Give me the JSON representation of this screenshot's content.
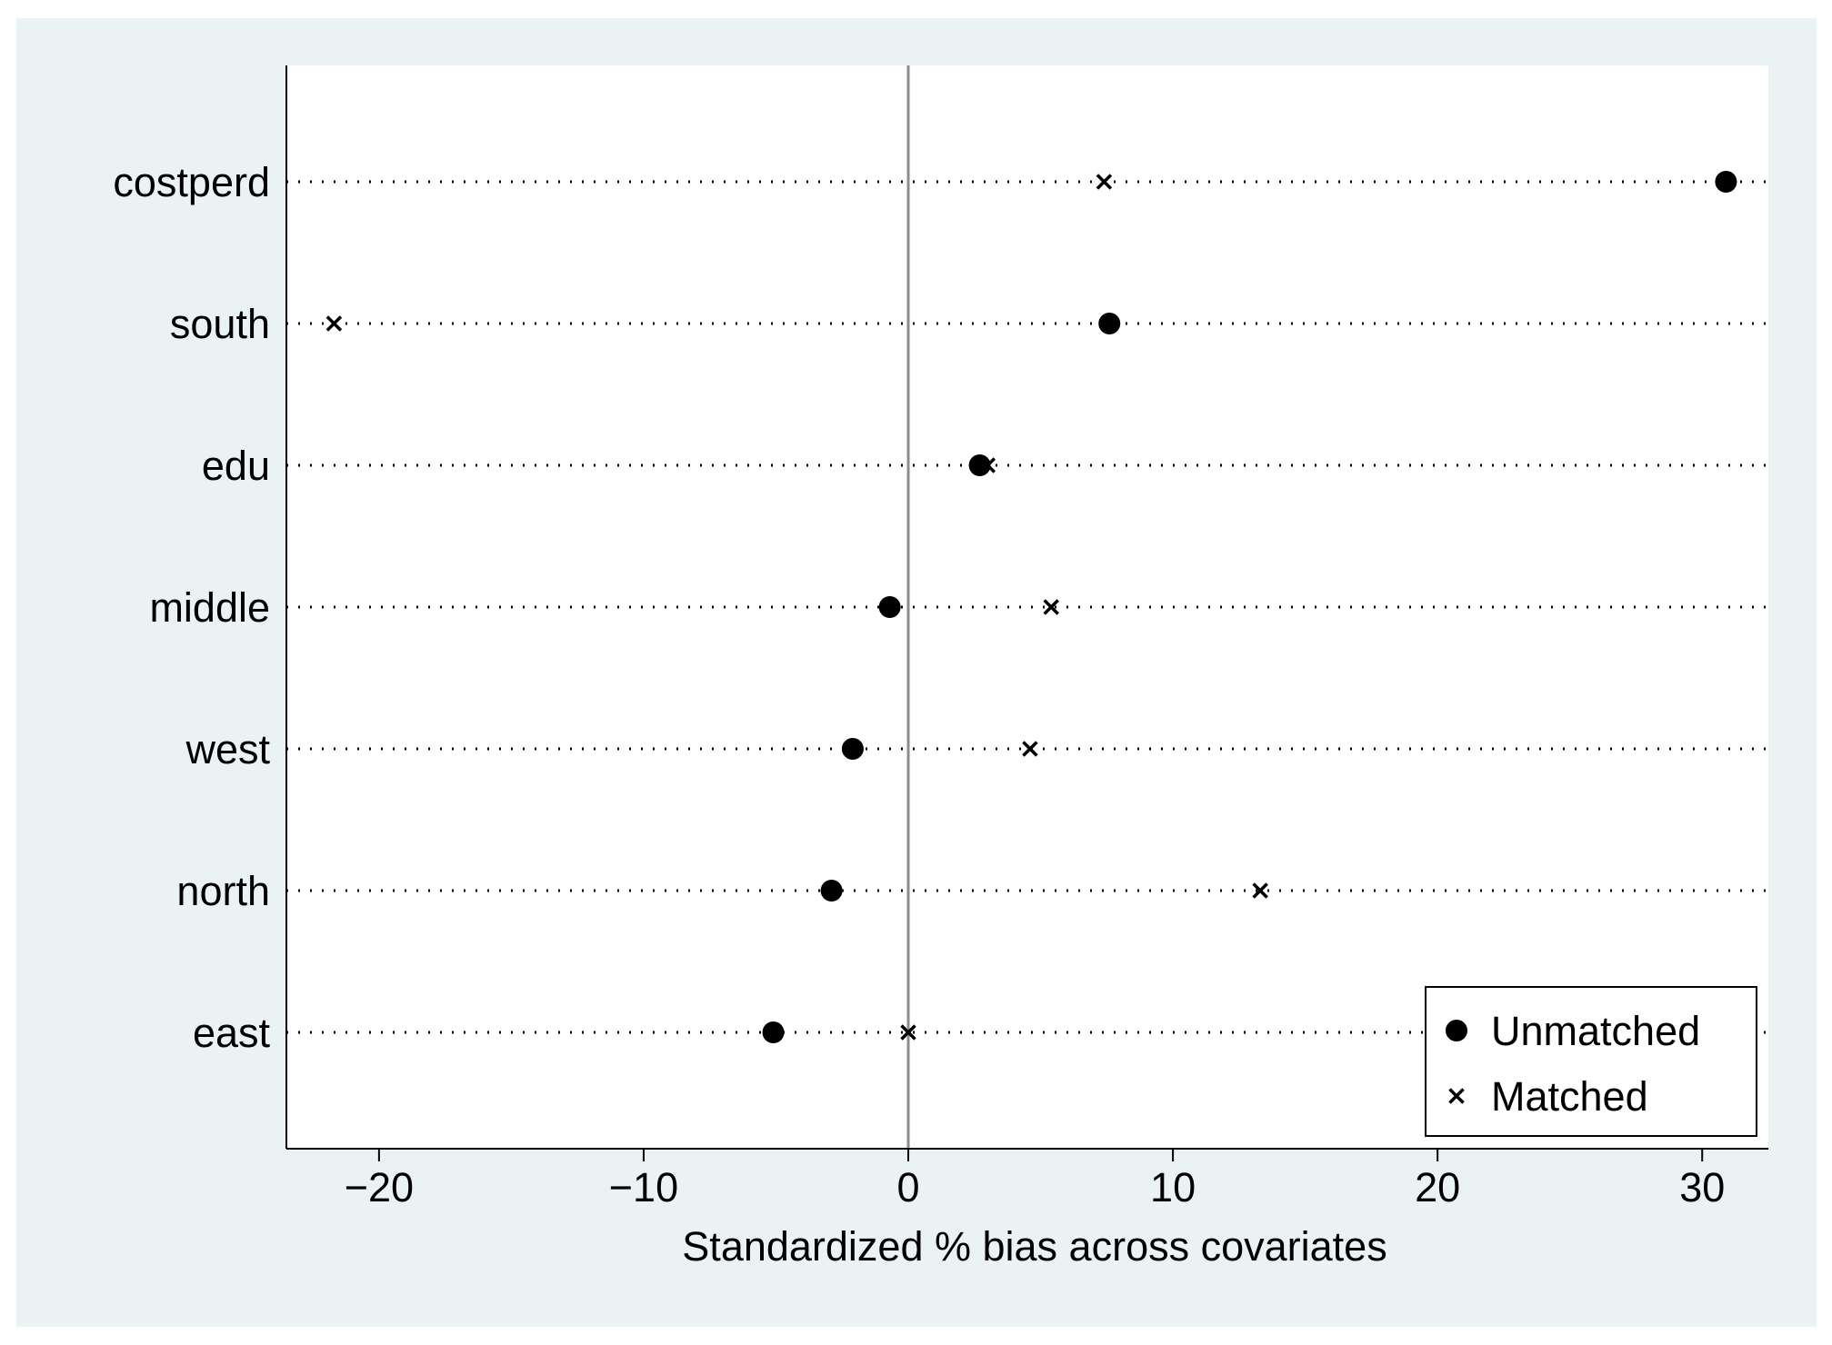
{
  "chart_data": {
    "type": "scatter",
    "title": "",
    "xlabel": "Standardized % bias across covariates",
    "ylabel": "",
    "xlim": [
      -23.5,
      32.5
    ],
    "xticks": [
      -20,
      -10,
      0,
      10,
      20,
      30
    ],
    "xtick_labels": [
      "−20",
      "−10",
      "0",
      "10",
      "20",
      "30"
    ],
    "categories": [
      "costperd",
      "south",
      "edu",
      "middle",
      "west",
      "north",
      "east"
    ],
    "series": [
      {
        "name": "Unmatched",
        "marker": "filled-circle",
        "values": [
          30.9,
          7.6,
          2.7,
          -0.7,
          -2.1,
          -2.9,
          -5.1
        ]
      },
      {
        "name": "Matched",
        "marker": "x-cross",
        "values": [
          7.4,
          -21.7,
          3.0,
          5.4,
          4.6,
          13.3,
          0.0
        ]
      }
    ],
    "reference_line_x": 0,
    "grid": false,
    "row_guides": "dotted",
    "legend_position": "bottom-right",
    "colors": {
      "outer_background": "#eaf2f3",
      "plot_background": "#ffffff",
      "markers": "#000000",
      "reference_line": "#8c8c8c"
    }
  }
}
